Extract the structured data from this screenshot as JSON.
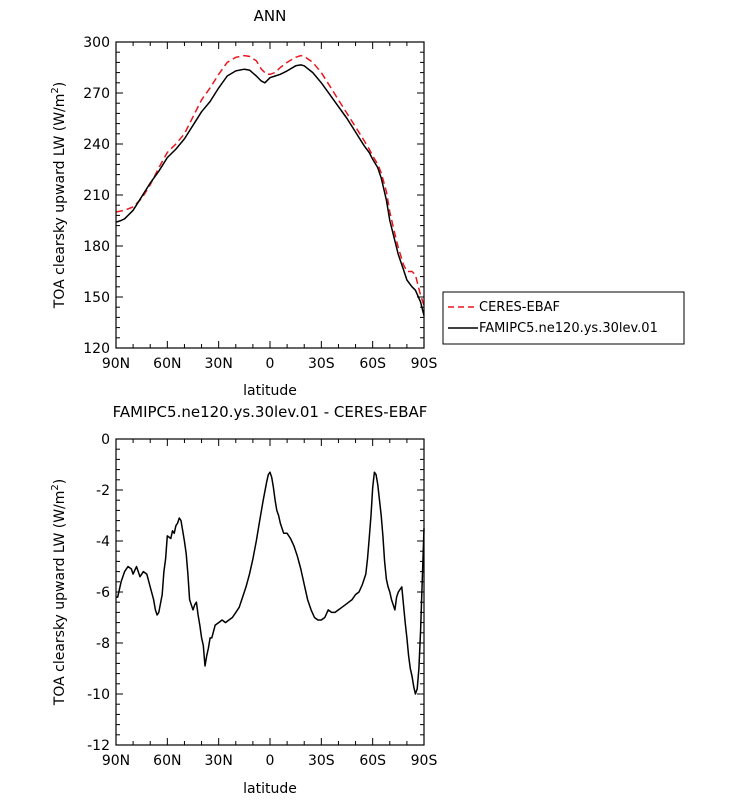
{
  "chart_data": [
    {
      "type": "line",
      "title": "ANN",
      "xlabel": "latitude",
      "ylabel": "TOA clearsky upward LW (W/m²)",
      "ylabel_main": "TOA clearsky upward LW (W/m",
      "ylabel_sup": "2",
      "ylabel_end": ")",
      "xlim": [
        90,
        -90
      ],
      "ylim": [
        120,
        300
      ],
      "xticks": [
        90,
        60,
        30,
        0,
        -30,
        -60,
        -90
      ],
      "xtick_labels": [
        "90N",
        "60N",
        "30N",
        "0",
        "30S",
        "60S",
        "90S"
      ],
      "yticks": [
        120,
        150,
        180,
        210,
        240,
        270,
        300
      ],
      "ytick_labels": [
        "120",
        "150",
        "180",
        "210",
        "240",
        "270",
        "300"
      ],
      "legend": "right-outside",
      "grid": false,
      "series": [
        {
          "name": "CERES-EBAF",
          "color": "#e8171e",
          "dash": "dashed",
          "x": [
            90,
            85,
            80,
            75,
            70,
            65,
            60,
            55,
            50,
            45,
            40,
            35,
            30,
            25,
            20,
            15,
            12,
            8,
            5,
            2,
            0,
            -3,
            -6,
            -10,
            -15,
            -18,
            -20,
            -25,
            -30,
            -35,
            -40,
            -45,
            -50,
            -55,
            -58,
            -60,
            -63,
            -65,
            -68,
            -70,
            -73,
            -75,
            -78,
            -80,
            -83,
            -85,
            -88,
            -90
          ],
          "y": [
            200,
            201,
            203,
            208,
            216,
            226,
            235,
            240,
            246,
            256,
            266,
            273,
            281,
            288,
            291,
            292,
            291.5,
            289,
            284,
            281,
            281,
            282,
            285,
            288,
            291,
            292,
            291.5,
            288,
            282,
            274,
            266,
            258,
            250,
            242,
            237,
            233,
            228,
            223,
            212,
            200,
            187,
            179,
            169,
            165,
            165,
            163,
            151,
            145
          ]
        },
        {
          "name": "FAMIPC5.ne120.ys.30lev.01",
          "color": "#000000",
          "dash": "solid",
          "x": [
            90,
            87,
            85,
            80,
            75,
            70,
            65,
            60,
            55,
            50,
            45,
            40,
            35,
            30,
            25,
            20,
            15,
            12,
            8,
            5,
            3,
            0,
            -3,
            -6,
            -10,
            -15,
            -18,
            -20,
            -25,
            -30,
            -35,
            -40,
            -45,
            -50,
            -55,
            -58,
            -60,
            -63,
            -65,
            -68,
            -70,
            -73,
            -75,
            -78,
            -80,
            -83,
            -85,
            -88,
            -90
          ],
          "y": [
            194,
            195,
            196,
            201,
            209,
            217,
            224,
            232,
            237,
            243,
            251,
            259,
            265,
            273,
            280,
            283,
            284,
            283.5,
            280,
            277,
            276,
            279,
            280,
            281,
            283,
            286,
            286.5,
            286,
            282,
            276,
            269,
            262,
            255,
            247,
            239,
            235,
            231,
            226,
            220,
            207,
            195,
            183,
            175,
            166,
            160,
            156,
            154,
            147,
            139
          ]
        }
      ]
    },
    {
      "type": "line",
      "title": "FAMIPC5.ne120.ys.30lev.01 - CERES-EBAF",
      "xlabel": "latitude",
      "ylabel": "TOA clearsky upward LW (W/m²)",
      "ylabel_main": "TOA clearsky upward LW (W/m",
      "ylabel_sup": "2",
      "ylabel_end": ")",
      "xlim": [
        90,
        -90
      ],
      "ylim": [
        -12,
        0
      ],
      "xticks": [
        90,
        60,
        30,
        0,
        -30,
        -60,
        -90
      ],
      "xtick_labels": [
        "90N",
        "60N",
        "30N",
        "0",
        "30S",
        "60S",
        "90S"
      ],
      "yticks": [
        -12,
        -10,
        -8,
        -6,
        -4,
        -2,
        0
      ],
      "ytick_labels": [
        "-12",
        "-10",
        "-8",
        "-6",
        "-4",
        "-2",
        "0"
      ],
      "grid": false,
      "series": [
        {
          "color": "#000000",
          "dash": "solid",
          "x": [
            90,
            89,
            87,
            85,
            83,
            81,
            80,
            78,
            76,
            74,
            72,
            70,
            68,
            67,
            66,
            65,
            63,
            62,
            61,
            60,
            58,
            57,
            56,
            55,
            54,
            53,
            52,
            51,
            50,
            49,
            48,
            47,
            46,
            45,
            44,
            43,
            42,
            41,
            40,
            39,
            38,
            37,
            36,
            35,
            34,
            32,
            30,
            28,
            26,
            24,
            22,
            20,
            18,
            16,
            14,
            12,
            10,
            8,
            6,
            4,
            2,
            1,
            0,
            -1,
            -2,
            -3,
            -4,
            -5,
            -6,
            -7,
            -8,
            -10,
            -12,
            -14,
            -16,
            -18,
            -20,
            -22,
            -24,
            -26,
            -28,
            -30,
            -32,
            -34,
            -36,
            -38,
            -40,
            -42,
            -44,
            -46,
            -48,
            -50,
            -52,
            -54,
            -56,
            -57,
            -58,
            -59,
            -60,
            -61,
            -62,
            -63,
            -64,
            -65,
            -66,
            -67,
            -68,
            -69,
            -70,
            -71,
            -72,
            -73,
            -74,
            -75,
            -76,
            -77,
            -78,
            -79,
            -80,
            -81,
            -82,
            -83,
            -84,
            -85,
            -86,
            -87,
            -88,
            -89,
            -90
          ],
          "y": [
            -6.2,
            -6.2,
            -5.6,
            -5.2,
            -5.0,
            -5.1,
            -5.3,
            -5.0,
            -5.4,
            -5.2,
            -5.3,
            -5.8,
            -6.3,
            -6.7,
            -6.9,
            -6.8,
            -6.1,
            -5.2,
            -4.7,
            -3.8,
            -3.9,
            -3.6,
            -3.7,
            -3.4,
            -3.3,
            -3.1,
            -3.2,
            -3.6,
            -4.0,
            -4.5,
            -5.3,
            -6.3,
            -6.5,
            -6.7,
            -6.5,
            -6.4,
            -6.9,
            -7.3,
            -7.8,
            -8.1,
            -8.9,
            -8.5,
            -8.2,
            -7.8,
            -7.8,
            -7.3,
            -7.2,
            -7.1,
            -7.2,
            -7.1,
            -7.0,
            -6.8,
            -6.6,
            -6.2,
            -5.8,
            -5.3,
            -4.7,
            -4.0,
            -3.2,
            -2.4,
            -1.7,
            -1.4,
            -1.3,
            -1.5,
            -1.9,
            -2.4,
            -2.8,
            -3.0,
            -3.3,
            -3.5,
            -3.7,
            -3.7,
            -3.9,
            -4.2,
            -4.6,
            -5.1,
            -5.7,
            -6.3,
            -6.7,
            -7.0,
            -7.1,
            -7.1,
            -7.0,
            -6.7,
            -6.8,
            -6.8,
            -6.7,
            -6.6,
            -6.5,
            -6.4,
            -6.3,
            -6.1,
            -6.0,
            -5.7,
            -5.3,
            -4.7,
            -3.9,
            -3.0,
            -1.9,
            -1.3,
            -1.4,
            -1.8,
            -2.4,
            -3.0,
            -3.8,
            -4.8,
            -5.5,
            -5.8,
            -6.0,
            -6.3,
            -6.5,
            -6.7,
            -6.2,
            -6.0,
            -5.9,
            -5.8,
            -6.5,
            -7.2,
            -7.8,
            -8.5,
            -9.0,
            -9.3,
            -9.7,
            -10.0,
            -9.8,
            -9.0,
            -7.5,
            -5.5,
            -3.5
          ]
        }
      ]
    }
  ]
}
